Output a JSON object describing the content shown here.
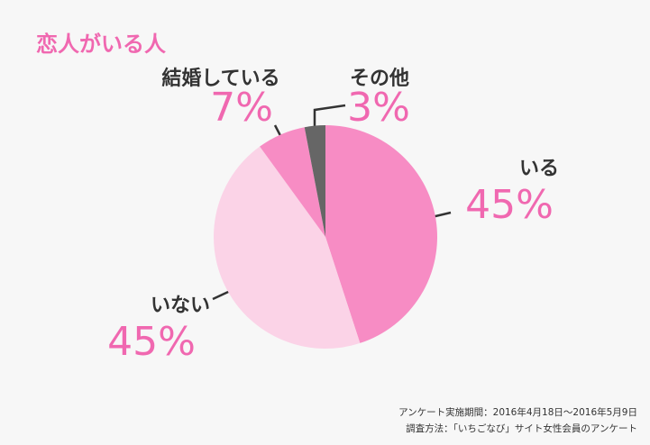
{
  "chart_data": {
    "type": "pie",
    "title": "恋人がいる人",
    "categories": [
      "いる",
      "いない",
      "結婚している",
      "その他"
    ],
    "values": [
      45,
      45,
      7,
      3
    ],
    "value_labels": [
      "45%",
      "45%",
      "7%",
      "3%"
    ],
    "colors": [
      "#f78cc4",
      "#fbd3e7",
      "#f78cc4",
      "#666666"
    ],
    "notes": [
      "アンケート実施期間：2016年4月18日〜2016年5月9日",
      "調査方法：「いちごなび」サイト女性会員のアンケート"
    ]
  }
}
